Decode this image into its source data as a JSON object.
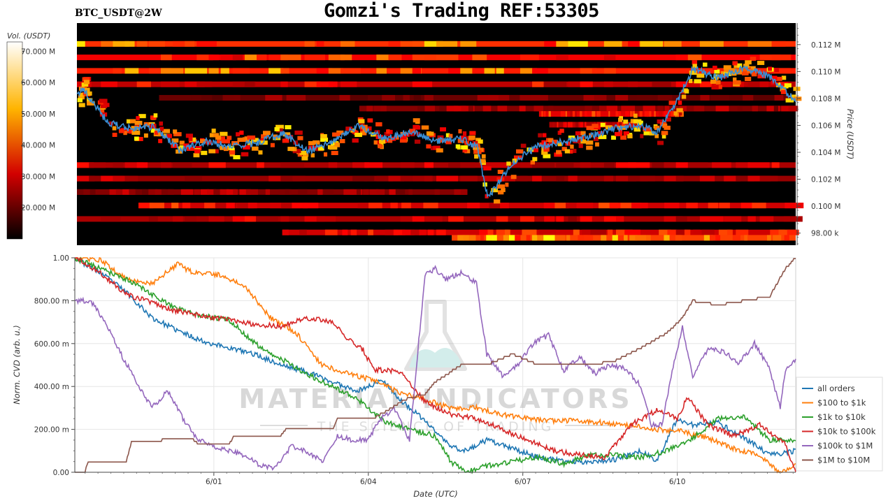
{
  "header": {
    "title": "Gomzi's Trading REF:53305",
    "symbol": "BTC_USDT@2W"
  },
  "watermark": {
    "name": "MATERIAL INDICATORS",
    "tagline": "THE SCIENCE OF TRADING",
    "icon": "flask-icon"
  },
  "colorbar": {
    "label": "Vol. (USDT)",
    "ticks": [
      "70.000 M",
      "60.000 M",
      "50.000 M",
      "40.000 M",
      "30.000 M",
      "20.000 M"
    ],
    "tick_values": [
      70,
      60,
      50,
      40,
      30,
      20
    ],
    "range": [
      10,
      73
    ],
    "colormap": "hot"
  },
  "chart_data": [
    {
      "type": "heatmap",
      "ylabel": "Price (USDT)",
      "ytick_labels": [
        "0.112 M",
        "0.110 M",
        "0.108 M",
        "0.106 M",
        "0.104 M",
        "0.102 M",
        "0.100 M",
        "98.00 k"
      ],
      "ytick_values": [
        112000,
        110000,
        108000,
        106000,
        104000,
        102000,
        100000,
        98000
      ],
      "ylim": [
        97100,
        113600
      ],
      "xlim": [
        0,
        14
      ],
      "price_series": {
        "name": "",
        "color": "#3a8fd6",
        "x": [
          0,
          0.1,
          0.3,
          0.6,
          1.0,
          1.5,
          2.0,
          2.5,
          3.0,
          3.5,
          4.0,
          4.5,
          5.0,
          5.5,
          6.0,
          6.5,
          7.0,
          7.5,
          7.8,
          8.0,
          8.5,
          9.0,
          9.5,
          10.0,
          10.5,
          11.0,
          11.3,
          11.7,
          12.0,
          12.5,
          13.0,
          13.5,
          14.0
        ],
        "y": [
          108100,
          108800,
          107800,
          106200,
          105800,
          105900,
          104200,
          104800,
          104500,
          104700,
          105400,
          104100,
          104800,
          106000,
          105000,
          105600,
          104800,
          105000,
          104400,
          100600,
          103300,
          104500,
          104800,
          105200,
          105800,
          106000,
          105500,
          107900,
          110200,
          109500,
          110300,
          109600,
          107800
        ]
      },
      "bands": [
        {
          "price": 112050,
          "x0": 0,
          "x1": 14,
          "intensity": 0.8
        },
        {
          "price": 111050,
          "x0": 0,
          "x1": 14,
          "intensity": 0.65
        },
        {
          "price": 110050,
          "x0": 0,
          "x1": 14,
          "intensity": 0.75
        },
        {
          "price": 109050,
          "x0": 0,
          "x1": 14,
          "intensity": 0.5
        },
        {
          "price": 108050,
          "x0": 1.6,
          "x1": 14,
          "intensity": 0.28
        },
        {
          "price": 107250,
          "x0": 5.5,
          "x1": 14,
          "intensity": 0.35
        },
        {
          "price": 106850,
          "x0": 9,
          "x1": 11.8,
          "intensity": 0.6
        },
        {
          "price": 106050,
          "x0": 9.2,
          "x1": 11,
          "intensity": 0.45
        },
        {
          "price": 103050,
          "x0": 0,
          "x1": 14,
          "intensity": 0.45
        },
        {
          "price": 102050,
          "x0": 0,
          "x1": 14,
          "intensity": 0.4
        },
        {
          "price": 101050,
          "x0": 0,
          "x1": 7.6,
          "intensity": 0.35
        },
        {
          "price": 100050,
          "x0": 1.2,
          "x1": 14,
          "intensity": 0.55
        },
        {
          "price": 99050,
          "x0": 0,
          "x1": 14,
          "intensity": 0.45
        },
        {
          "price": 98050,
          "x0": 4,
          "x1": 14,
          "intensity": 0.55
        },
        {
          "price": 97650,
          "x0": 7.3,
          "x1": 14,
          "intensity": 0.85
        }
      ]
    },
    {
      "type": "line",
      "xlabel": "Date (UTC)",
      "ylabel": "Norm. CVD (arb. u.)",
      "xtick_labels": [
        "6/01",
        "6/04",
        "6/07",
        "6/10"
      ],
      "xtick_values": [
        2.7,
        5.7,
        8.7,
        11.7
      ],
      "ytick_labels": [
        "0.00",
        "200.00 m",
        "400.00 m",
        "600.00 m",
        "800.00 m",
        "1.00"
      ],
      "ytick_values": [
        0,
        0.2,
        0.4,
        0.6,
        0.8,
        1.0
      ],
      "xlim": [
        0,
        14
      ],
      "ylim": [
        0,
        1
      ],
      "grid": true,
      "legend_position": "bottom-right",
      "series": [
        {
          "name": "all orders",
          "color": "#1f77b4",
          "x": [
            0,
            0.5,
            1.0,
            1.5,
            2.0,
            2.5,
            3.0,
            3.5,
            4.0,
            4.5,
            5.0,
            5.5,
            6.0,
            6.3,
            6.8,
            7.3,
            7.6,
            8.0,
            8.5,
            9.0,
            9.5,
            10.0,
            10.5,
            11.0,
            11.3,
            11.7,
            12.0,
            12.5,
            13.0,
            13.5,
            14.0
          ],
          "y": [
            1.0,
            0.93,
            0.84,
            0.72,
            0.66,
            0.61,
            0.58,
            0.55,
            0.5,
            0.47,
            0.42,
            0.38,
            0.43,
            0.34,
            0.24,
            0.12,
            0.1,
            0.15,
            0.11,
            0.07,
            0.05,
            0.05,
            0.06,
            0.1,
            0.05,
            0.25,
            0.22,
            0.23,
            0.16,
            0.08,
            0.1
          ]
        },
        {
          "name": "$100 to $1k",
          "color": "#ff7f0e",
          "x": [
            0,
            0.5,
            1.0,
            1.5,
            2.0,
            2.3,
            2.8,
            3.3,
            3.8,
            4.3,
            4.8,
            5.3,
            5.8,
            6.3,
            6.8,
            7.3,
            7.8,
            8.3,
            8.8,
            9.3,
            9.8,
            10.3,
            10.8,
            11.3,
            11.8,
            12.3,
            12.8,
            13.3,
            13.7,
            14.0
          ],
          "y": [
            1.0,
            0.99,
            0.9,
            0.88,
            0.97,
            0.93,
            0.92,
            0.87,
            0.72,
            0.65,
            0.5,
            0.46,
            0.43,
            0.37,
            0.34,
            0.3,
            0.3,
            0.27,
            0.25,
            0.24,
            0.24,
            0.23,
            0.22,
            0.2,
            0.19,
            0.16,
            0.11,
            0.08,
            0.0,
            0.04
          ]
        },
        {
          "name": "$1k to $10k",
          "color": "#2ca02c",
          "x": [
            0,
            0.5,
            1.0,
            1.5,
            2.0,
            2.5,
            3.0,
            3.5,
            4.0,
            4.5,
            5.0,
            5.5,
            6.0,
            6.5,
            7.0,
            7.3,
            7.6,
            8.0,
            8.5,
            9.0,
            9.5,
            10.0,
            10.5,
            11.0,
            11.5,
            12.0,
            12.5,
            13.0,
            13.5,
            14.0
          ],
          "y": [
            1.0,
            0.95,
            0.9,
            0.83,
            0.76,
            0.73,
            0.71,
            0.6,
            0.53,
            0.46,
            0.4,
            0.34,
            0.24,
            0.2,
            0.17,
            0.05,
            0.0,
            0.03,
            0.05,
            0.07,
            0.04,
            0.08,
            0.08,
            0.07,
            0.1,
            0.16,
            0.25,
            0.26,
            0.15,
            0.15
          ]
        },
        {
          "name": "$10k to $100k",
          "color": "#d62728",
          "x": [
            0,
            0.5,
            1.0,
            1.5,
            2.0,
            2.5,
            3.0,
            3.5,
            4.0,
            4.5,
            5.0,
            5.4,
            5.6,
            5.8,
            6.3,
            6.8,
            7.3,
            7.8,
            8.3,
            8.8,
            9.3,
            9.8,
            10.3,
            10.8,
            11.3,
            11.7,
            11.9,
            12.3,
            12.8,
            13.3,
            13.8,
            14.0
          ],
          "y": [
            1.0,
            0.93,
            0.83,
            0.79,
            0.75,
            0.73,
            0.71,
            0.69,
            0.68,
            0.72,
            0.7,
            0.6,
            0.57,
            0.48,
            0.47,
            0.33,
            0.27,
            0.25,
            0.2,
            0.15,
            0.1,
            0.08,
            0.07,
            0.22,
            0.29,
            0.25,
            0.35,
            0.22,
            0.17,
            0.22,
            0.13,
            0.0
          ]
        },
        {
          "name": "$100k to $1M",
          "color": "#9467bd",
          "x": [
            0,
            0.3,
            0.6,
            0.9,
            1.2,
            1.5,
            1.8,
            2.1,
            2.4,
            2.7,
            3.0,
            3.3,
            3.6,
            3.9,
            4.2,
            4.5,
            4.8,
            5.1,
            5.4,
            5.7,
            5.9,
            6.2,
            6.5,
            6.8,
            7.0,
            7.2,
            7.5,
            7.8,
            8.0,
            8.3,
            8.6,
            8.9,
            9.2,
            9.5,
            9.8,
            10.1,
            10.4,
            10.7,
            11.0,
            11.2,
            11.4,
            11.6,
            11.8,
            12.0,
            12.3,
            12.6,
            12.9,
            13.2,
            13.5,
            13.7,
            13.8,
            14.0
          ],
          "y": [
            0.8,
            0.8,
            0.7,
            0.55,
            0.42,
            0.3,
            0.38,
            0.25,
            0.15,
            0.12,
            0.1,
            0.08,
            0.03,
            0.02,
            0.12,
            0.1,
            0.05,
            0.17,
            0.15,
            0.15,
            0.24,
            0.3,
            0.15,
            0.92,
            0.95,
            0.9,
            0.93,
            0.88,
            0.55,
            0.45,
            0.5,
            0.6,
            0.64,
            0.47,
            0.54,
            0.46,
            0.5,
            0.48,
            0.4,
            0.22,
            0.22,
            0.47,
            0.68,
            0.44,
            0.58,
            0.56,
            0.51,
            0.6,
            0.48,
            0.3,
            0.48,
            0.52
          ]
        },
        {
          "name": "$1M to $10M",
          "color": "#8c564b",
          "x": [
            0,
            0.2,
            0.25,
            1.0,
            1.1,
            1.6,
            1.7,
            2.3,
            2.4,
            3.0,
            3.1,
            4.0,
            4.1,
            5.0,
            5.1,
            5.8,
            6.5,
            6.8,
            7.0,
            7.5,
            8.0,
            8.5,
            9.0,
            9.5,
            10.0,
            10.5,
            11.0,
            11.5,
            11.8,
            12.0,
            12.5,
            13.0,
            13.5,
            13.8,
            14.0
          ],
          "y": [
            0.0,
            0.0,
            0.05,
            0.05,
            0.14,
            0.14,
            0.15,
            0.15,
            0.13,
            0.13,
            0.17,
            0.17,
            0.2,
            0.2,
            0.25,
            0.25,
            0.35,
            0.36,
            0.42,
            0.5,
            0.5,
            0.55,
            0.5,
            0.5,
            0.5,
            0.52,
            0.58,
            0.65,
            0.72,
            0.8,
            0.78,
            0.8,
            0.82,
            0.95,
            1.0
          ]
        }
      ]
    }
  ]
}
